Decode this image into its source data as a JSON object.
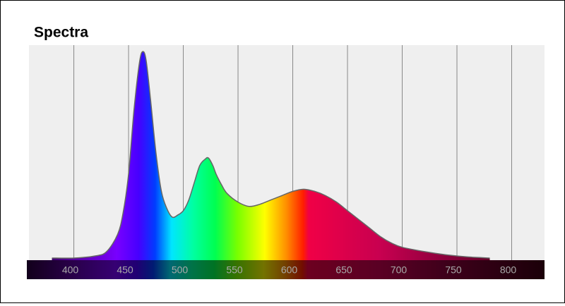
{
  "chart_data": {
    "type": "area",
    "title": "Spectra",
    "x": [
      380,
      400,
      420,
      430,
      440,
      445,
      450,
      455,
      460,
      463,
      466,
      470,
      475,
      480,
      485,
      490,
      495,
      500,
      505,
      510,
      515,
      520,
      523,
      527,
      530,
      535,
      540,
      550,
      560,
      570,
      580,
      590,
      600,
      610,
      620,
      630,
      640,
      650,
      660,
      670,
      680,
      690,
      700,
      720,
      740,
      760,
      780
    ],
    "values": [
      1,
      1,
      2,
      4,
      12,
      22,
      40,
      70,
      92,
      97,
      93,
      75,
      50,
      32,
      24,
      20,
      21,
      23,
      28,
      36,
      44,
      47,
      47.5,
      44,
      40,
      35,
      31,
      27,
      25,
      26,
      28,
      30,
      32,
      33,
      32,
      30,
      27,
      23,
      19,
      15,
      11,
      8,
      6,
      4,
      2.5,
      1.5,
      1
    ],
    "xlim": [
      359,
      830
    ],
    "ylim": [
      0,
      100
    ],
    "xticks": [
      400,
      450,
      500,
      550,
      600,
      650,
      700,
      750,
      800
    ],
    "grid": true,
    "line_color": "#666666"
  }
}
